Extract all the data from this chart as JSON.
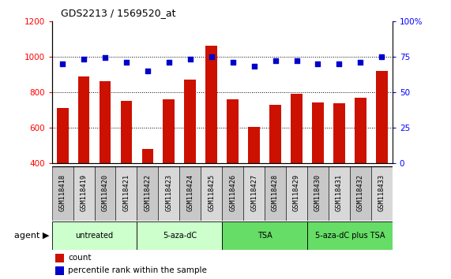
{
  "title": "GDS2213 / 1569520_at",
  "samples": [
    "GSM118418",
    "GSM118419",
    "GSM118420",
    "GSM118421",
    "GSM118422",
    "GSM118423",
    "GSM118424",
    "GSM118425",
    "GSM118426",
    "GSM118427",
    "GSM118428",
    "GSM118429",
    "GSM118430",
    "GSM118431",
    "GSM118432",
    "GSM118433"
  ],
  "counts": [
    710,
    890,
    860,
    750,
    480,
    760,
    870,
    1060,
    760,
    605,
    730,
    790,
    740,
    735,
    770,
    920
  ],
  "percentiles": [
    70,
    73,
    74,
    71,
    65,
    71,
    73,
    75,
    71,
    68,
    72,
    72,
    70,
    70,
    71,
    75
  ],
  "group_spans": [
    {
      "label": "untreated",
      "start": 0,
      "end": 4,
      "color": "#ccffcc"
    },
    {
      "label": "5-aza-dC",
      "start": 4,
      "end": 8,
      "color": "#ccffcc"
    },
    {
      "label": "TSA",
      "start": 8,
      "end": 12,
      "color": "#66dd66"
    },
    {
      "label": "5-aza-dC plus TSA",
      "start": 12,
      "end": 16,
      "color": "#66dd66"
    }
  ],
  "bar_color": "#cc1100",
  "dot_color": "#0000cc",
  "ylim_left": [
    400,
    1200
  ],
  "ylim_right": [
    0,
    100
  ],
  "yticks_left": [
    400,
    600,
    800,
    1000,
    1200
  ],
  "yticks_right": [
    0,
    25,
    50,
    75,
    100
  ],
  "grid_lines": [
    600,
    800,
    1000
  ],
  "background_color": "#ffffff",
  "sample_bg_color": "#d0d0d0",
  "sample_bg_alt": "#e8e8e8"
}
